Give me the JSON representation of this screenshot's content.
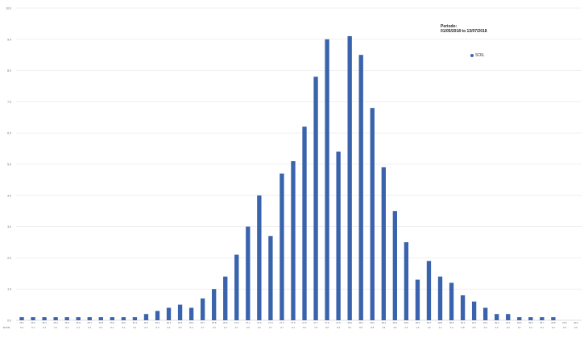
{
  "annotation": {
    "label": "Periodo:",
    "range": "01/05/2018 to 13/07/2018"
  },
  "colors": {
    "bar": "#3a63ad",
    "grid": "#e6e6e6",
    "axis": "#bfbfbf",
    "text": "#666666"
  },
  "chart_data": {
    "type": "bar",
    "title": "",
    "xlabel": "",
    "ylabel": "",
    "ylim": [
      0,
      10
    ],
    "yticks": [
      "0.0",
      "1.0",
      "2.0",
      "3.0",
      "4.0",
      "5.0",
      "6.0",
      "7.0",
      "8.0",
      "9.0",
      "10.0"
    ],
    "grid": true,
    "legend_position": "top-right",
    "categories": [
      "25.1",
      "25.2",
      "25.3",
      "25.4",
      "25.5",
      "25.6",
      "25.7",
      "25.8",
      "25.9",
      "26.0",
      "26.1",
      "26.2",
      "26.3",
      "26.4",
      "26.5",
      "26.6",
      "26.7",
      "26.8",
      "26.9",
      "27.0",
      "27.1",
      "27.2",
      "27.3",
      "27.4",
      "27.5",
      "27.6",
      "27.7",
      "27.8",
      "27.9",
      "28.0",
      "28.1",
      "28.2",
      "28.3",
      "28.4",
      "28.5",
      "28.6",
      "28.7",
      "28.8",
      "28.9",
      "29.0",
      "29.1",
      "29.2",
      "29.3",
      "29.4",
      "29.5",
      "29.6",
      "29.7",
      "29.8",
      "29.9",
      "30.0"
    ],
    "series": [
      {
        "name": "SOIL",
        "values": [
          0.1,
          0.1,
          0.1,
          0.1,
          0.1,
          0.1,
          0.1,
          0.1,
          0.1,
          0.1,
          0.1,
          0.2,
          0.3,
          0.4,
          0.5,
          0.4,
          0.7,
          1.0,
          1.4,
          2.1,
          3.0,
          4.0,
          2.7,
          4.7,
          5.1,
          6.2,
          7.8,
          9.0,
          5.4,
          9.1,
          8.5,
          6.8,
          4.9,
          3.5,
          2.5,
          1.3,
          1.9,
          1.4,
          1.2,
          0.8,
          0.6,
          0.4,
          0.2,
          0.2,
          0.1,
          0.1,
          0.1,
          0.1,
          0.0,
          0.0
        ],
        "value_labels": [
          "0.1",
          "0.1",
          "0.1",
          "0.1",
          "0.1",
          "0.1",
          "0.1",
          "0.1",
          "0.1",
          "0.1",
          "0.1",
          "0.2",
          "0.3",
          "0.4",
          "0.5",
          "0.4",
          "0.7",
          "1.0",
          "1.4",
          "2.1",
          "3.0",
          "4.0",
          "2.7",
          "4.7",
          "5.1",
          "6.2",
          "7.8",
          "9.0",
          "5.4",
          "9.1",
          "8.5",
          "6.8",
          "4.9",
          "3.5",
          "2.5",
          "1.3",
          "1.9",
          "1.4",
          "1.2",
          "0.8",
          "0.6",
          "0.4",
          "0.2",
          "0.2",
          "0.1",
          "0.1",
          "0.1",
          "0.1",
          "0.0",
          "0.0"
        ]
      }
    ],
    "table_row_label": "SOIL"
  }
}
